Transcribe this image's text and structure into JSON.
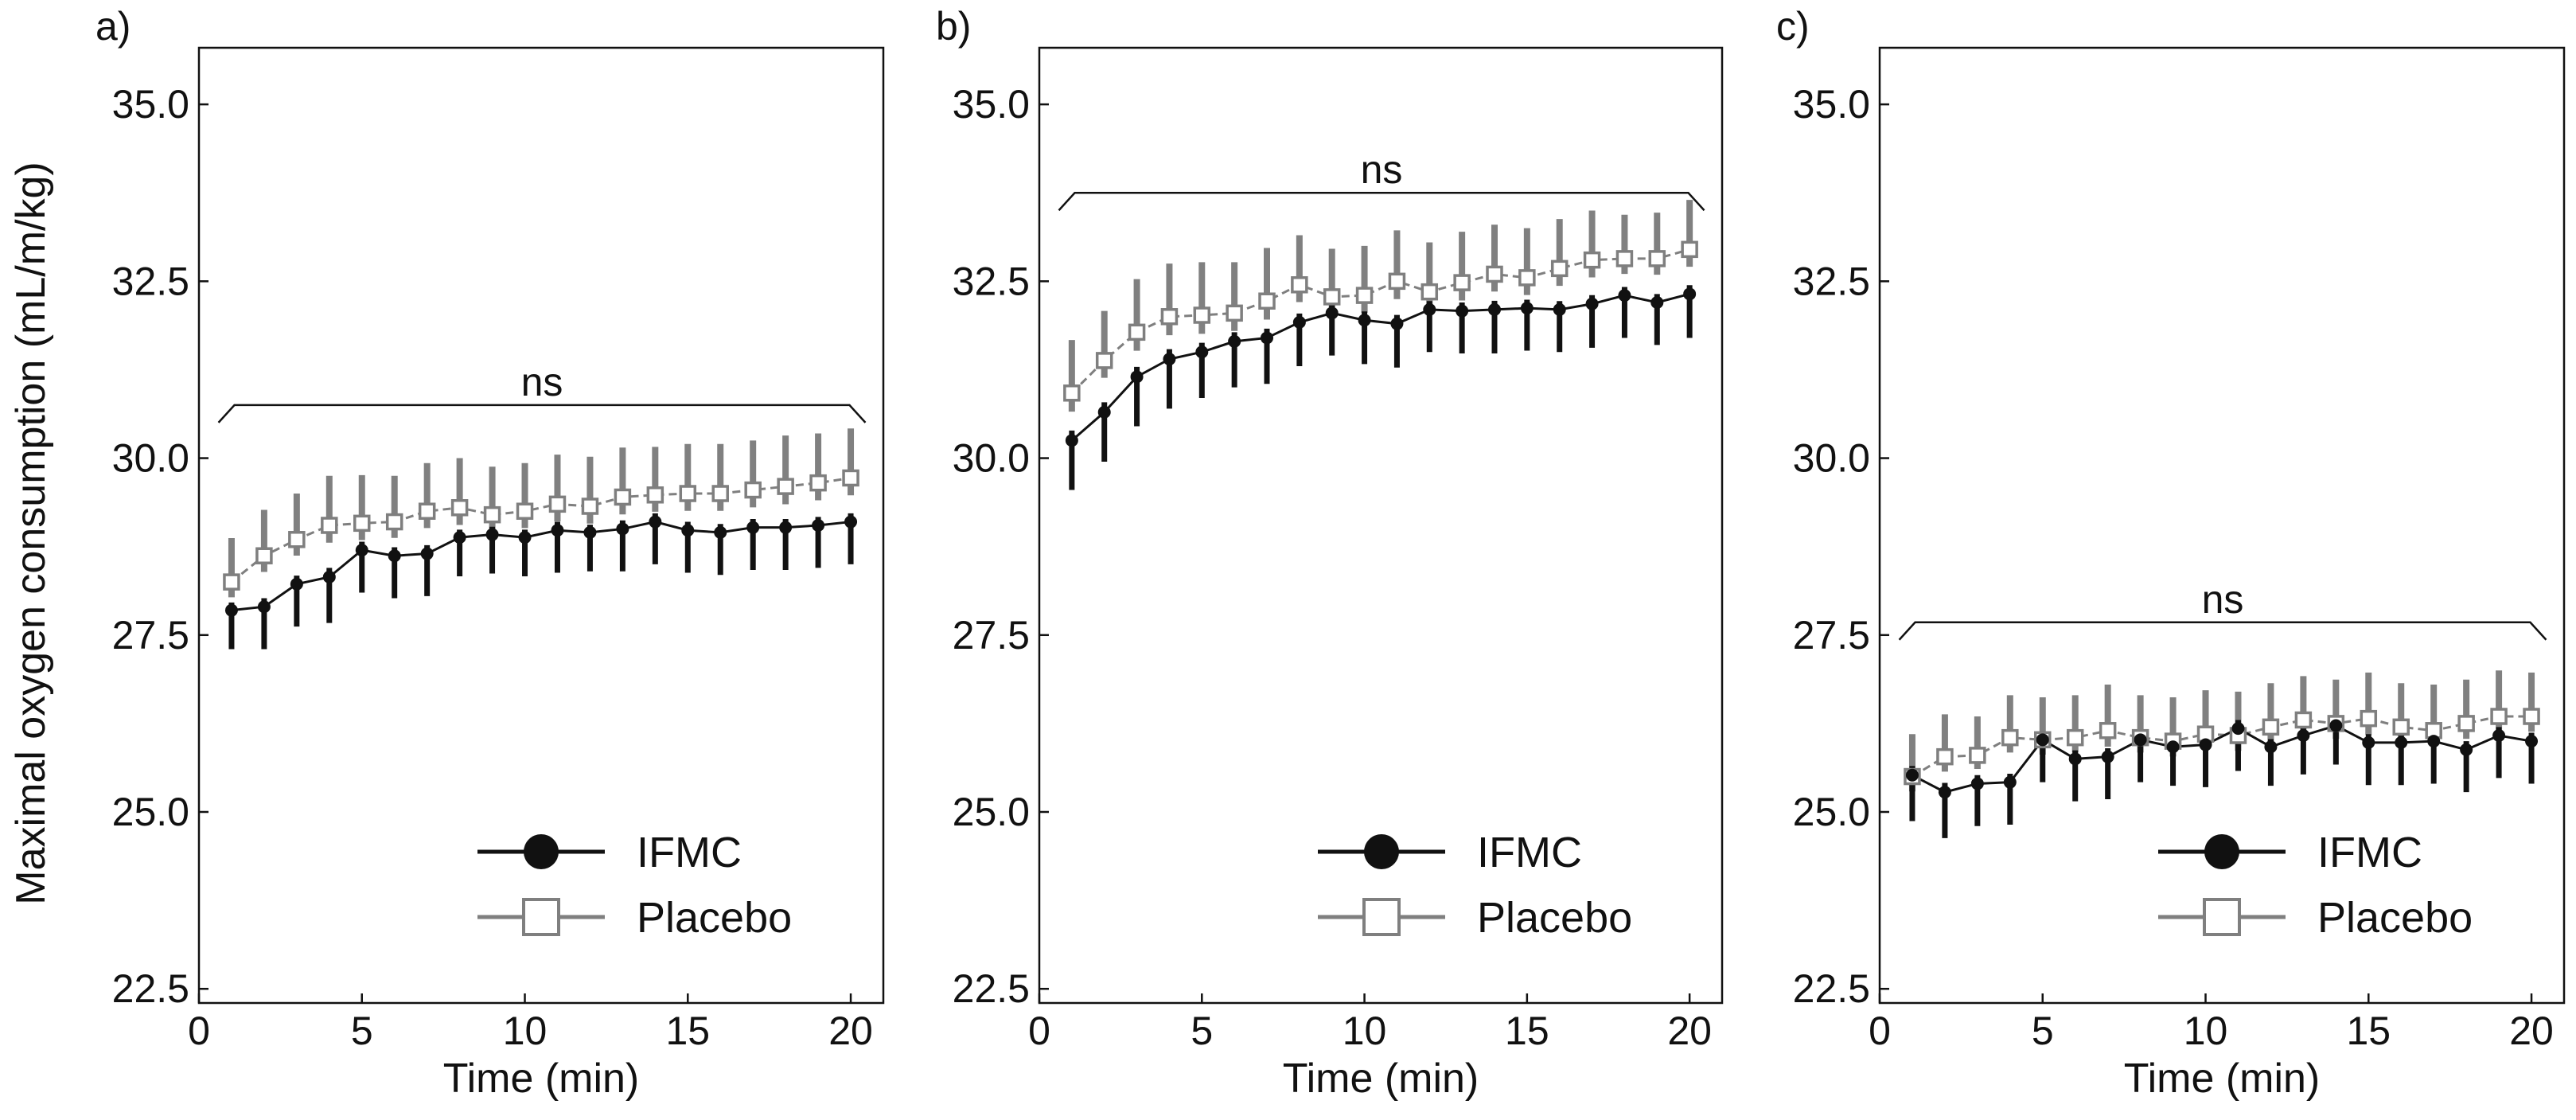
{
  "figure": {
    "ylabel": "Maximal oxygen consumption (mL/m/kg)",
    "xlabel": "Time (min)",
    "colors": {
      "ifmc": "#111111",
      "placebo": "#7f7f7f",
      "ifmc_err": "#111111",
      "placebo_err": "#808080"
    }
  },
  "chart_data": [
    {
      "type": "line",
      "panel_label": "a)",
      "xlabel": "Time (min)",
      "ylabel": "Maximal oxygen consumption (mL/m/kg)",
      "xlim": [
        0,
        21
      ],
      "ylim": [
        22.3,
        35.8
      ],
      "xticks": [
        0,
        5,
        10,
        15,
        20
      ],
      "xtick_labels": [
        "0",
        "5",
        "10",
        "15",
        "20"
      ],
      "yticks": [
        22.5,
        25.0,
        27.5,
        30.0,
        32.5,
        35.0
      ],
      "ytick_labels": [
        "22.5",
        "25.0",
        "27.5",
        "30.0",
        "32.5",
        "35.0"
      ],
      "legend": {
        "position": "bottom-right",
        "entries": [
          "IFMC",
          "Placebo"
        ]
      },
      "annotation": {
        "text": "ns",
        "y": 30.75
      },
      "x": [
        1,
        2,
        3,
        4,
        5,
        6,
        7,
        8,
        9,
        10,
        11,
        12,
        13,
        14,
        15,
        16,
        17,
        18,
        19,
        20
      ],
      "series": [
        {
          "name": "IFMC",
          "marker": "filled-circle",
          "values": [
            27.85,
            27.9,
            28.22,
            28.32,
            28.7,
            28.62,
            28.65,
            28.88,
            28.92,
            28.88,
            28.98,
            28.95,
            29.0,
            29.1,
            28.98,
            28.95,
            29.02,
            29.02,
            29.05,
            29.1
          ],
          "err": [
            0.55,
            0.6,
            0.6,
            0.65,
            0.6,
            0.6,
            0.6,
            0.55,
            0.55,
            0.55,
            0.6,
            0.55,
            0.6,
            0.6,
            0.6,
            0.6,
            0.6,
            0.6,
            0.6,
            0.6
          ]
        },
        {
          "name": "Placebo",
          "marker": "open-square",
          "values": [
            28.25,
            28.62,
            28.85,
            29.05,
            29.08,
            29.1,
            29.25,
            29.3,
            29.2,
            29.25,
            29.35,
            29.32,
            29.45,
            29.48,
            29.5,
            29.5,
            29.55,
            29.6,
            29.65,
            29.72
          ],
          "err": [
            0.62,
            0.65,
            0.65,
            0.7,
            0.68,
            0.65,
            0.68,
            0.7,
            0.68,
            0.68,
            0.7,
            0.7,
            0.7,
            0.68,
            0.7,
            0.7,
            0.7,
            0.72,
            0.7,
            0.7
          ]
        }
      ]
    },
    {
      "type": "line",
      "panel_label": "b)",
      "xlabel": "Time (min)",
      "xlim": [
        0,
        21
      ],
      "ylim": [
        22.3,
        35.8
      ],
      "xticks": [
        0,
        5,
        10,
        15,
        20
      ],
      "xtick_labels": [
        "0",
        "5",
        "10",
        "15",
        "20"
      ],
      "yticks": [
        22.5,
        25.0,
        27.5,
        30.0,
        32.5,
        35.0
      ],
      "ytick_labels": [
        "22.5",
        "25.0",
        "27.5",
        "30.0",
        "32.5",
        "35.0"
      ],
      "legend": {
        "position": "bottom-right",
        "entries": [
          "IFMC",
          "Placebo"
        ]
      },
      "annotation": {
        "text": "ns",
        "y": 33.75
      },
      "x": [
        1,
        2,
        3,
        4,
        5,
        6,
        7,
        8,
        9,
        10,
        11,
        12,
        13,
        14,
        15,
        16,
        17,
        18,
        19,
        20
      ],
      "series": [
        {
          "name": "IFMC",
          "marker": "filled-circle",
          "values": [
            30.25,
            30.65,
            31.15,
            31.4,
            31.5,
            31.65,
            31.7,
            31.92,
            32.05,
            31.95,
            31.9,
            32.1,
            32.08,
            32.1,
            32.12,
            32.1,
            32.18,
            32.3,
            32.2,
            32.32
          ],
          "err": [
            0.7,
            0.7,
            0.7,
            0.7,
            0.65,
            0.65,
            0.65,
            0.62,
            0.6,
            0.62,
            0.62,
            0.6,
            0.6,
            0.62,
            0.6,
            0.6,
            0.62,
            0.6,
            0.6,
            0.62
          ]
        },
        {
          "name": "Placebo",
          "marker": "open-square",
          "values": [
            30.92,
            31.38,
            31.78,
            32.0,
            32.02,
            32.05,
            32.22,
            32.45,
            32.28,
            32.3,
            32.5,
            32.35,
            32.48,
            32.6,
            32.55,
            32.68,
            32.8,
            32.82,
            32.82,
            32.95
          ],
          "err": [
            0.75,
            0.7,
            0.75,
            0.75,
            0.75,
            0.72,
            0.75,
            0.7,
            0.68,
            0.7,
            0.72,
            0.7,
            0.72,
            0.7,
            0.7,
            0.7,
            0.7,
            0.62,
            0.65,
            0.7
          ]
        }
      ]
    },
    {
      "type": "line",
      "panel_label": "c)",
      "xlabel": "Time (min)",
      "xlim": [
        0,
        21
      ],
      "ylim": [
        22.3,
        35.8
      ],
      "xticks": [
        0,
        5,
        10,
        15,
        20
      ],
      "xtick_labels": [
        "0",
        "5",
        "10",
        "15",
        "20"
      ],
      "yticks": [
        22.5,
        25.0,
        27.5,
        30.0,
        32.5,
        35.0
      ],
      "ytick_labels": [
        "22.5",
        "25.0",
        "27.5",
        "30.0",
        "32.5",
        "35.0"
      ],
      "legend": {
        "position": "bottom-right",
        "entries": [
          "IFMC",
          "Placebo"
        ]
      },
      "annotation": {
        "text": "ns",
        "y": 27.68
      },
      "x": [
        1,
        2,
        3,
        4,
        5,
        6,
        7,
        8,
        9,
        10,
        11,
        12,
        13,
        14,
        15,
        16,
        17,
        18,
        19,
        20
      ],
      "series": [
        {
          "name": "IFMC",
          "marker": "filled-circle",
          "values": [
            25.52,
            25.28,
            25.4,
            25.42,
            26.02,
            25.75,
            25.78,
            26.02,
            25.92,
            25.95,
            26.18,
            25.92,
            26.08,
            26.22,
            25.98,
            25.98,
            26.0,
            25.88,
            26.08,
            26.0
          ],
          "err": [
            0.65,
            0.65,
            0.6,
            0.6,
            0.6,
            0.6,
            0.6,
            0.6,
            0.55,
            0.6,
            0.6,
            0.55,
            0.55,
            0.55,
            0.6,
            0.6,
            0.6,
            0.6,
            0.6,
            0.6
          ]
        },
        {
          "name": "Placebo",
          "marker": "open-square",
          "values": [
            25.5,
            25.78,
            25.8,
            26.05,
            26.02,
            26.05,
            26.15,
            26.05,
            26.0,
            26.1,
            26.08,
            26.2,
            26.3,
            26.25,
            26.32,
            26.2,
            26.15,
            26.25,
            26.35,
            26.35
          ],
          "err": [
            0.6,
            0.6,
            0.55,
            0.6,
            0.6,
            0.6,
            0.65,
            0.6,
            0.62,
            0.62,
            0.62,
            0.62,
            0.62,
            0.62,
            0.65,
            0.62,
            0.65,
            0.62,
            0.65,
            0.62
          ]
        }
      ]
    }
  ]
}
